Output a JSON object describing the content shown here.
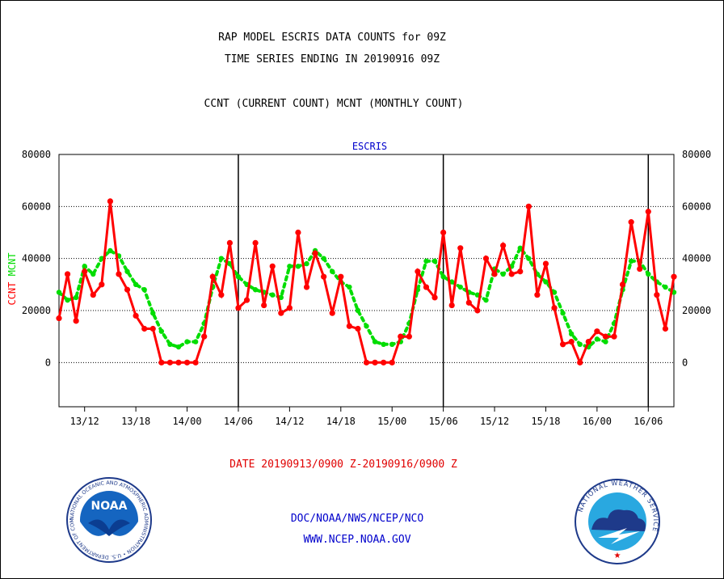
{
  "header": {
    "title_line1": "RAP MODEL ESCRIS DATA COUNTS for 09Z",
    "title_line2": "TIME SERIES ENDING IN 20190916 09Z",
    "subtitle": "CCNT (CURRENT COUNT) MCNT (MONTHLY COUNT)"
  },
  "footer": {
    "date_range": "DATE 20190913/0900 Z-20190916/0900 Z",
    "org_line": "DOC/NOAA/NWS/NCEP/NCO",
    "url_line": "WWW.NCEP.NOAA.GOV"
  },
  "logos": {
    "noaa": {
      "center_text": "NOAA",
      "ring_text": "NATIONAL OCEANIC AND ATMOSPHERIC ADMINISTRATION  •  U.S. DEPARTMENT OF COMMERCE"
    },
    "nws": {
      "ring_text": "NATIONAL WEATHER SERVICE"
    }
  },
  "colors": {
    "ccnt": "#ff0000",
    "mcnt": "#00dd00",
    "label_blue": "#0000cc",
    "grid": "#000000"
  },
  "chart_data": {
    "type": "line",
    "title": "ESCRIS",
    "ylabel_left": [
      "CCNT",
      "MCNT"
    ],
    "ylim": [
      -17000,
      80000
    ],
    "yticks": [
      0,
      20000,
      40000,
      60000,
      80000
    ],
    "ytick_labels": [
      "0",
      "20000",
      "40000",
      "60000",
      "80000"
    ],
    "xlim": [
      0,
      72
    ],
    "x_tick_values": [
      3,
      9,
      15,
      21,
      27,
      33,
      39,
      45,
      51,
      57,
      63,
      69
    ],
    "x_tick_labels": [
      "13/12",
      "13/18",
      "14/00",
      "14/06",
      "14/12",
      "14/18",
      "15/00",
      "15/06",
      "15/12",
      "15/18",
      "16/00",
      "16/06"
    ],
    "day_lines_x": [
      21,
      45,
      69
    ],
    "grid": "horizontal dotted",
    "series": [
      {
        "name": "CCNT",
        "color": "#ff0000",
        "x": [
          0,
          1,
          2,
          3,
          4,
          5,
          6,
          7,
          8,
          9,
          10,
          11,
          12,
          13,
          14,
          15,
          16,
          17,
          18,
          19,
          20,
          21,
          22,
          23,
          24,
          25,
          26,
          27,
          28,
          29,
          30,
          31,
          32,
          33,
          34,
          35,
          36,
          37,
          38,
          39,
          40,
          41,
          42,
          43,
          44,
          45,
          46,
          47,
          48,
          49,
          50,
          51,
          52,
          53,
          54,
          55,
          56,
          57,
          58,
          59,
          60,
          61,
          62,
          63,
          64,
          65,
          66,
          67,
          68,
          69,
          70,
          71,
          72
        ],
        "values": [
          17000,
          34000,
          16000,
          35000,
          26000,
          30000,
          62000,
          34000,
          28000,
          18000,
          13000,
          13000,
          0,
          0,
          0,
          0,
          0,
          10000,
          33000,
          26000,
          46000,
          21000,
          24000,
          46000,
          22000,
          37000,
          19000,
          21000,
          50000,
          29000,
          42000,
          33000,
          19000,
          33000,
          14000,
          13000,
          0,
          0,
          0,
          0,
          10000,
          10000,
          35000,
          29000,
          25000,
          50000,
          22000,
          44000,
          23000,
          20000,
          40000,
          34000,
          45000,
          34000,
          35000,
          60000,
          26000,
          38000,
          21000,
          7000,
          8000,
          0,
          8000,
          12000,
          10000,
          10000,
          30000,
          54000,
          36000,
          58000,
          26000,
          13000,
          33000
        ]
      },
      {
        "name": "MCNT",
        "color": "#00dd00",
        "x": [
          0,
          1,
          2,
          3,
          4,
          5,
          6,
          7,
          8,
          9,
          10,
          11,
          12,
          13,
          14,
          15,
          16,
          17,
          18,
          19,
          20,
          21,
          22,
          23,
          24,
          25,
          26,
          27,
          28,
          29,
          30,
          31,
          32,
          33,
          34,
          35,
          36,
          37,
          38,
          39,
          40,
          41,
          42,
          43,
          44,
          45,
          46,
          47,
          48,
          49,
          50,
          51,
          52,
          53,
          54,
          55,
          56,
          57,
          58,
          59,
          60,
          61,
          62,
          63,
          64,
          65,
          66,
          67,
          68,
          69,
          70,
          71,
          72
        ],
        "values": [
          27000,
          24000,
          25000,
          37000,
          34000,
          40000,
          43000,
          41000,
          35000,
          30000,
          28000,
          19000,
          12000,
          7000,
          6000,
          8000,
          8000,
          15000,
          29000,
          40000,
          38000,
          33000,
          30000,
          28000,
          27000,
          26000,
          25000,
          37000,
          37000,
          38000,
          43000,
          40000,
          35000,
          31000,
          29000,
          20000,
          14000,
          8000,
          7000,
          7000,
          8000,
          15000,
          28000,
          39000,
          39000,
          33000,
          31000,
          29000,
          27000,
          26000,
          24000,
          36000,
          34000,
          37000,
          44000,
          40000,
          34000,
          31000,
          27000,
          19000,
          11000,
          7000,
          6000,
          9000,
          8000,
          15000,
          28000,
          39000,
          39000,
          34000,
          31000,
          29000,
          27000
        ]
      }
    ]
  }
}
